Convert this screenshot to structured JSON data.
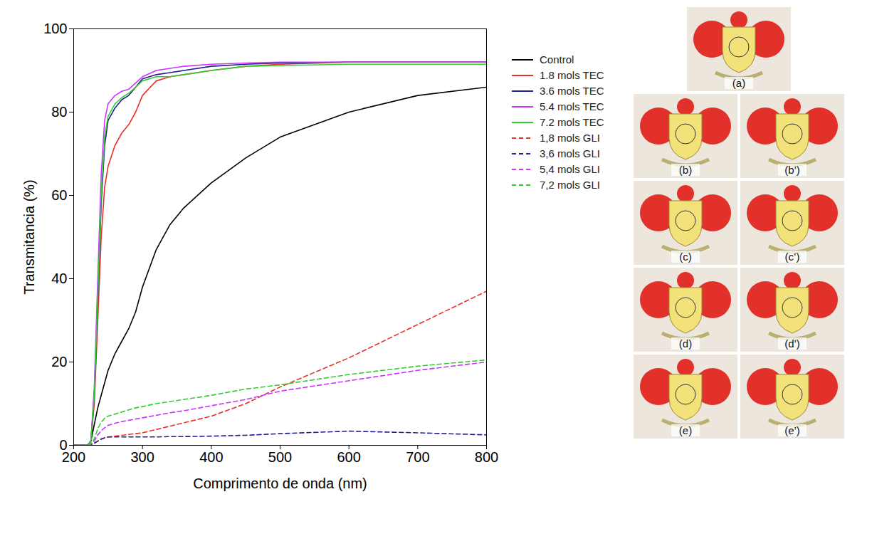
{
  "chart_data": {
    "type": "line",
    "x_label": "Comprimento de onda (nm)",
    "y_label": "Transmitancia (%)",
    "xlim": [
      200,
      800
    ],
    "xticks": [
      200,
      300,
      400,
      500,
      600,
      700,
      800
    ],
    "ylim": [
      0,
      100
    ],
    "yticks": [
      0,
      20,
      40,
      60,
      80,
      100
    ],
    "grid": false,
    "legend": "right",
    "x": [
      200,
      220,
      225,
      230,
      235,
      240,
      245,
      250,
      260,
      270,
      280,
      290,
      300,
      320,
      340,
      360,
      400,
      450,
      500,
      600,
      700,
      800
    ],
    "series": [
      {
        "name": "Control",
        "color": "#000000",
        "line_style": "solid",
        "values": [
          0,
          0,
          1,
          5,
          9,
          12,
          15,
          18,
          22,
          25,
          28,
          32,
          38,
          47,
          53,
          57,
          63,
          69,
          74,
          80,
          84,
          86
        ]
      },
      {
        "name": "1.8 mols TEC",
        "color": "#e8312a",
        "line_style": "solid",
        "values": [
          0,
          0,
          1,
          10,
          30,
          50,
          62,
          67,
          72,
          75,
          77,
          80,
          84,
          87.5,
          88.5,
          89,
          90,
          91,
          91.5,
          92,
          92,
          92
        ]
      },
      {
        "name": "3.6 mols TEC",
        "color": "#1f1f8f",
        "line_style": "solid",
        "values": [
          0,
          0,
          1,
          12,
          35,
          58,
          72,
          78,
          81,
          83,
          84,
          86,
          88,
          89,
          89.5,
          90,
          91,
          91.5,
          91.8,
          92,
          92,
          92
        ]
      },
      {
        "name": "5.4 mols TEC",
        "color": "#cc33ff",
        "line_style": "solid",
        "values": [
          0,
          0,
          1,
          14,
          40,
          65,
          78,
          82,
          84,
          85,
          85.5,
          87,
          88.5,
          90,
          90.5,
          91,
          91.5,
          91.8,
          92,
          92,
          92,
          92
        ]
      },
      {
        "name": "7.2 mols TEC",
        "color": "#33cc33",
        "line_style": "solid",
        "values": [
          0,
          0,
          1,
          12,
          36,
          60,
          74,
          79,
          82,
          83.5,
          84.5,
          86,
          87.5,
          88.5,
          88.5,
          89,
          90,
          91,
          91.2,
          91.5,
          91.5,
          91.5
        ]
      },
      {
        "name": "1,8 mols GLI",
        "color": "#e8312a",
        "line_style": "dashed",
        "values": [
          0,
          0,
          0.2,
          0.5,
          1,
          1.5,
          1.8,
          2,
          2.2,
          2.4,
          2.6,
          2.8,
          3,
          3.8,
          4.6,
          5.4,
          7,
          10,
          14,
          21,
          29,
          37
        ]
      },
      {
        "name": "3,6 mols GLI",
        "color": "#1f1f8f",
        "line_style": "dashed",
        "values": [
          0,
          0,
          0.2,
          0.5,
          1,
          1.5,
          1.8,
          2,
          2,
          2,
          2,
          2,
          2,
          2,
          2.1,
          2.1,
          2.2,
          2.4,
          2.8,
          3.4,
          3,
          2.5
        ]
      },
      {
        "name": "5,4 mols GLI",
        "color": "#cc33ff",
        "line_style": "dashed",
        "values": [
          0,
          0,
          0.3,
          1,
          2.5,
          3.5,
          4.2,
          4.8,
          5.3,
          5.7,
          6,
          6.3,
          6.6,
          7.2,
          7.8,
          8.3,
          9.5,
          11,
          13,
          15.5,
          18,
          20
        ]
      },
      {
        "name": "7,2 mols GLI",
        "color": "#33cc33",
        "line_style": "dashed",
        "values": [
          0,
          0,
          0.4,
          1.5,
          4,
          5.5,
          6.5,
          7,
          7.5,
          8,
          8.5,
          9,
          9.3,
          10,
          10.5,
          11,
          12,
          13.5,
          14.5,
          17,
          19,
          20.5
        ]
      }
    ]
  },
  "image_panels": {
    "labels": [
      "(a)",
      "(b)",
      "(b’)",
      "(c)",
      "(c’)",
      "(d)",
      "(d’)",
      "(e)",
      "(e’)"
    ]
  }
}
